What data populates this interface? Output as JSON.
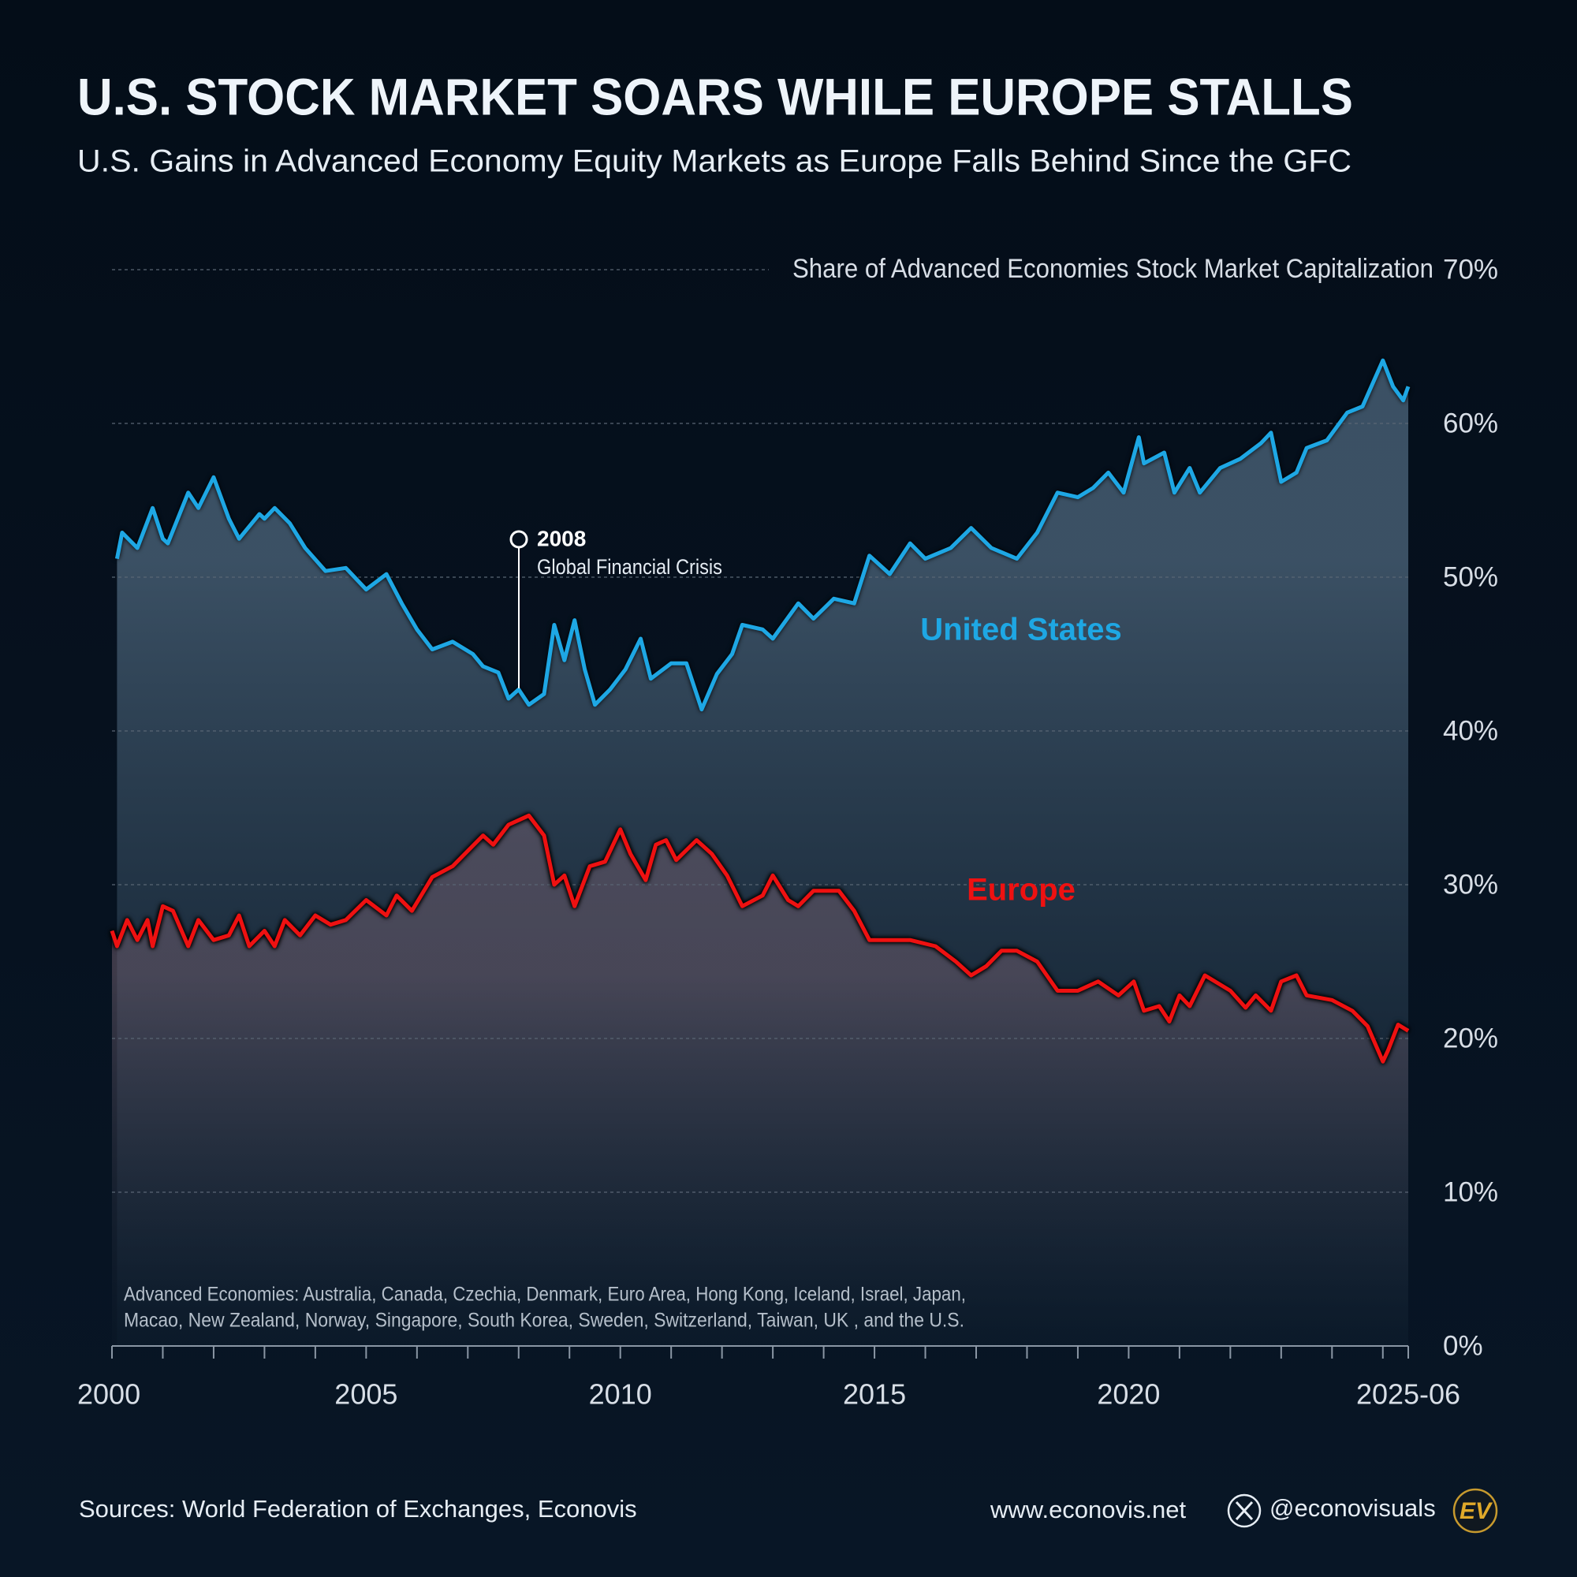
{
  "chart_data": {
    "type": "line",
    "title": "U.S. STOCK MARKET SOARS WHILE EUROPE STALLS",
    "subtitle": "U.S. Gains in Advanced Economy Equity Markets as Europe Falls Behind Since the GFC",
    "y_axis_label": "Share of Advanced Economies Stock Market Capitalization",
    "xlim": [
      2000,
      2025.5
    ],
    "xticks": [
      2000,
      2005,
      2010,
      2015,
      2020,
      {
        "value": 2025.5,
        "label": "2025-06"
      }
    ],
    "xminorticks": [
      2001,
      2002,
      2003,
      2004,
      2006,
      2007,
      2008,
      2009,
      2011,
      2012,
      2013,
      2014,
      2016,
      2017,
      2018,
      2019,
      2021,
      2022,
      2023,
      2024,
      2025
    ],
    "ylim": [
      0,
      70
    ],
    "yticks": [
      {
        "value": 0,
        "label": "0%"
      },
      {
        "value": 10,
        "label": "10%"
      },
      {
        "value": 20,
        "label": "20%"
      },
      {
        "value": 30,
        "label": "30%"
      },
      {
        "value": 40,
        "label": "40%"
      },
      {
        "value": 50,
        "label": "50%"
      },
      {
        "value": 60,
        "label": "60%"
      },
      {
        "value": 70,
        "label": "70%"
      }
    ],
    "grid": true,
    "series": [
      {
        "name": "United States",
        "color": "#1ea7e4",
        "x": [
          2000.1,
          2000.2,
          2000.5,
          2000.8,
          2001.0,
          2001.1,
          2001.5,
          2001.7,
          2002.0,
          2002.3,
          2002.5,
          2002.9,
          2003.0,
          2003.2,
          2003.5,
          2003.8,
          2004.2,
          2004.6,
          2005.0,
          2005.4,
          2005.7,
          2006.0,
          2006.3,
          2006.7,
          2007.1,
          2007.3,
          2007.6,
          2007.8,
          2008.0,
          2008.2,
          2008.5,
          2008.7,
          2008.9,
          2009.1,
          2009.3,
          2009.5,
          2009.8,
          2010.1,
          2010.4,
          2010.6,
          2011.0,
          2011.3,
          2011.6,
          2011.9,
          2012.2,
          2012.4,
          2012.8,
          2013.0,
          2013.5,
          2013.8,
          2014.2,
          2014.6,
          2014.9,
          2015.3,
          2015.7,
          2016.0,
          2016.5,
          2016.9,
          2017.3,
          2017.8,
          2018.2,
          2018.6,
          2019.0,
          2019.3,
          2019.6,
          2019.9,
          2020.2,
          2020.3,
          2020.7,
          2020.9,
          2021.2,
          2021.4,
          2021.8,
          2022.2,
          2022.6,
          2022.8,
          2023.0,
          2023.3,
          2023.5,
          2023.9,
          2024.3,
          2024.6,
          2025.0,
          2025.2,
          2025.4,
          2025.5
        ],
        "values": [
          51.2,
          52.9,
          51.9,
          54.5,
          52.5,
          52.2,
          55.5,
          54.5,
          56.5,
          53.8,
          52.5,
          54.1,
          53.8,
          54.5,
          53.5,
          51.9,
          50.4,
          50.6,
          49.2,
          50.2,
          48.3,
          46.6,
          45.3,
          45.8,
          45.0,
          44.2,
          43.8,
          42.1,
          42.7,
          41.7,
          42.4,
          46.9,
          44.6,
          47.2,
          44.0,
          41.7,
          42.7,
          44.0,
          46.0,
          43.4,
          44.4,
          44.4,
          41.4,
          43.7,
          45.0,
          46.9,
          46.6,
          46.0,
          48.3,
          47.3,
          48.6,
          48.3,
          51.4,
          50.2,
          52.2,
          51.2,
          51.9,
          53.2,
          51.9,
          51.2,
          52.9,
          55.5,
          55.2,
          55.8,
          56.8,
          55.5,
          59.1,
          57.4,
          58.1,
          55.5,
          57.1,
          55.5,
          57.1,
          57.7,
          58.7,
          59.4,
          56.2,
          56.8,
          58.4,
          58.9,
          60.7,
          61.1,
          64.1,
          62.4,
          61.5,
          62.4
        ]
      },
      {
        "name": "Europe",
        "color": "#ee1111",
        "x": [
          2000.0,
          2000.1,
          2000.3,
          2000.5,
          2000.7,
          2000.8,
          2001.0,
          2001.2,
          2001.5,
          2001.7,
          2002.0,
          2002.3,
          2002.5,
          2002.7,
          2003.0,
          2003.2,
          2003.4,
          2003.7,
          2004.0,
          2004.3,
          2004.6,
          2005.0,
          2005.4,
          2005.6,
          2005.9,
          2006.3,
          2006.7,
          2007.0,
          2007.3,
          2007.5,
          2007.8,
          2008.2,
          2008.5,
          2008.7,
          2008.9,
          2009.1,
          2009.4,
          2009.7,
          2010.0,
          2010.2,
          2010.5,
          2010.7,
          2010.9,
          2011.1,
          2011.5,
          2011.8,
          2012.1,
          2012.4,
          2012.8,
          2013.0,
          2013.3,
          2013.5,
          2013.8,
          2014.3,
          2014.6,
          2014.9,
          2015.3,
          2015.7,
          2016.2,
          2016.6,
          2016.9,
          2017.2,
          2017.5,
          2017.8,
          2018.2,
          2018.6,
          2019.0,
          2019.4,
          2019.8,
          2020.1,
          2020.3,
          2020.6,
          2020.8,
          2021.0,
          2021.2,
          2021.5,
          2022.0,
          2022.3,
          2022.5,
          2022.8,
          2023.0,
          2023.3,
          2023.5,
          2024.0,
          2024.4,
          2024.7,
          2025.0,
          2025.1,
          2025.3,
          2025.5
        ],
        "values": [
          27.0,
          26.0,
          27.7,
          26.4,
          27.7,
          26.0,
          28.6,
          28.3,
          26.0,
          27.7,
          26.4,
          26.7,
          28.0,
          26.0,
          27.0,
          26.0,
          27.7,
          26.7,
          28.0,
          27.4,
          27.7,
          29.0,
          28.0,
          29.3,
          28.3,
          30.5,
          31.2,
          32.2,
          33.2,
          32.6,
          33.9,
          34.5,
          33.2,
          30.0,
          30.6,
          28.6,
          31.2,
          31.5,
          33.6,
          32.0,
          30.3,
          32.6,
          32.9,
          31.6,
          32.9,
          32.0,
          30.6,
          28.6,
          29.3,
          30.6,
          29.0,
          28.6,
          29.6,
          29.6,
          28.3,
          26.4,
          26.4,
          26.4,
          26.0,
          25.0,
          24.1,
          24.7,
          25.7,
          25.7,
          25.0,
          23.1,
          23.1,
          23.7,
          22.8,
          23.7,
          21.8,
          22.1,
          21.1,
          22.8,
          22.1,
          24.1,
          23.1,
          22.0,
          22.8,
          21.8,
          23.7,
          24.1,
          22.8,
          22.5,
          21.8,
          20.8,
          18.5,
          19.2,
          20.9,
          20.5
        ]
      }
    ],
    "annotations": {
      "event_year": "2008",
      "event_label": "Global Financial Crisis"
    },
    "footnote": [
      "Advanced Economies: Australia, Canada, Czechia, Denmark, Euro Area, Hong Kong, Iceland, Israel, Japan,",
      "Macao, New Zealand, Norway, Singapore, South Korea, Sweden, Switzerland, Taiwan, UK , and the U.S."
    ],
    "source": "Sources: World Federation of Exchanges, Econovis",
    "website": "www.econovis.net",
    "handle": "@econovisuals",
    "logo": "EV"
  }
}
